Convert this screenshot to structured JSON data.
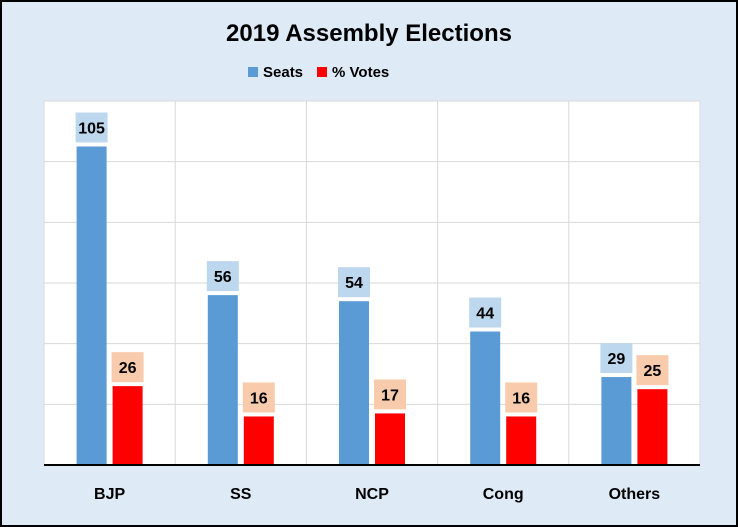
{
  "chart_data": {
    "type": "bar",
    "title": "2019 Assembly Elections",
    "categories": [
      "BJP",
      "SS",
      "NCP",
      "Cong",
      "Others"
    ],
    "series": [
      {
        "name": "Seats",
        "values": [
          105,
          56,
          54,
          44,
          29
        ],
        "color": "#5B9BD5",
        "label_bg": "#BDD7EE"
      },
      {
        "name": "% Votes",
        "values": [
          26,
          16,
          17,
          16,
          25
        ],
        "color": "#FF0000",
        "label_bg": "#F8CBAD"
      }
    ],
    "ylim": [
      0,
      120
    ],
    "grid": true,
    "legend_position": "top-center",
    "plot_background": "#FFFFFF",
    "frame_background": "#DEEBF7"
  }
}
